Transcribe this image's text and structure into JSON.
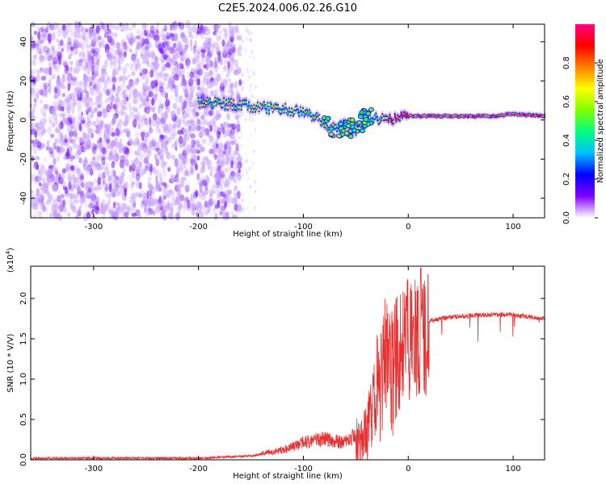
{
  "title": "C2E5.2024.006.02.26.G10",
  "colors": {
    "background": "#ffffff",
    "snr_line": "#e83030",
    "axis": "#000000"
  },
  "chart_data": [
    {
      "type": "heatmap",
      "name": "spectrogram",
      "xlabel": "Height of straight line (km)",
      "ylabel": "Frequency (Hz)",
      "xlim": [
        -360,
        130
      ],
      "ylim": [
        -50,
        49
      ],
      "xticks": [
        -300,
        -200,
        -100,
        0,
        100
      ],
      "yticks": [
        -40,
        -20,
        0,
        20,
        40
      ],
      "ridge": {
        "description_points_x": [
          -190,
          -170,
          -150,
          -130,
          -110,
          -90,
          -75,
          -60,
          -50,
          -40,
          -30,
          -20,
          -10,
          0,
          20,
          40,
          60,
          80,
          100,
          130
        ],
        "description_points_y": [
          9,
          8,
          7,
          6,
          5,
          2,
          -4,
          -3,
          -5,
          2,
          1,
          0,
          1,
          2,
          2,
          2,
          2,
          2,
          3,
          2
        ]
      },
      "colorbar": {
        "label": "Normalized spectral amplitude",
        "range": [
          0,
          1
        ],
        "ticks": [
          "0.0",
          "0.2",
          "0.4",
          "0.6",
          "0.8"
        ],
        "colormap": [
          "#ffffff",
          "#8000ff",
          "#0000ff",
          "#00c0ff",
          "#00ff80",
          "#80ff00",
          "#ffff00",
          "#ff8000",
          "#ff0000",
          "#ff0080"
        ]
      }
    },
    {
      "type": "line",
      "name": "snr",
      "xlabel": "Height of straight line (km)",
      "ylabel": "SNR (10 * V/V)",
      "y_exponent_label": "(x10",
      "y_exponent": "4",
      "y_exponent_close": ")",
      "xlim": [
        -360,
        130
      ],
      "ylim": [
        0,
        2.4
      ],
      "xticks": [
        -300,
        -200,
        -100,
        0,
        100
      ],
      "yticks": [
        "0.0",
        "0.5",
        "1.0",
        "1.5",
        "2.0"
      ],
      "yticks_values": [
        0,
        0.5,
        1.0,
        1.5,
        2.0
      ],
      "series_envelope": {
        "x": [
          -360,
          -200,
          -150,
          -120,
          -100,
          -80,
          -60,
          -45,
          -35,
          -25,
          -20,
          -15,
          -10,
          -5,
          0,
          10,
          20,
          30,
          50,
          80,
          100,
          120,
          130
        ],
        "y": [
          0.02,
          0.02,
          0.05,
          0.1,
          0.18,
          0.22,
          0.18,
          0.3,
          0.7,
          1.2,
          1.6,
          1.2,
          1.5,
          1.6,
          1.65,
          1.7,
          1.72,
          1.75,
          1.78,
          1.8,
          1.8,
          1.76,
          1.75
        ]
      }
    }
  ]
}
